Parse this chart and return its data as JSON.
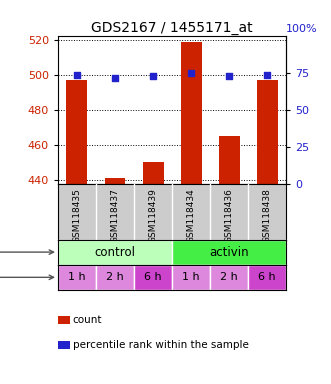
{
  "title": "GDS2167 / 1455171_at",
  "samples": [
    "GSM118435",
    "GSM118437",
    "GSM118439",
    "GSM118434",
    "GSM118436",
    "GSM118438"
  ],
  "counts": [
    497,
    441,
    450,
    519,
    465,
    497
  ],
  "percentile_ranks": [
    74,
    72,
    73,
    75,
    73,
    74
  ],
  "ylim_left": [
    438,
    522
  ],
  "ylim_right": [
    0,
    100
  ],
  "yticks_left": [
    440,
    460,
    480,
    500,
    520
  ],
  "yticks_right": [
    0,
    25,
    50,
    75
  ],
  "bar_color": "#cc2200",
  "dot_color": "#2222cc",
  "bar_width": 0.55,
  "agent_colors": [
    "#bbffbb",
    "#44ee44"
  ],
  "time_labels": [
    "1 h",
    "2 h",
    "6 h",
    "1 h",
    "2 h",
    "6 h"
  ],
  "time_color_light": "#dd88dd",
  "time_color_dark": "#cc44cc",
  "sample_bg_color": "#cccccc",
  "legend_count_color": "#cc2200",
  "legend_dot_color": "#2222cc",
  "grid_linestyle": "dotted",
  "grid_lw": 0.8
}
